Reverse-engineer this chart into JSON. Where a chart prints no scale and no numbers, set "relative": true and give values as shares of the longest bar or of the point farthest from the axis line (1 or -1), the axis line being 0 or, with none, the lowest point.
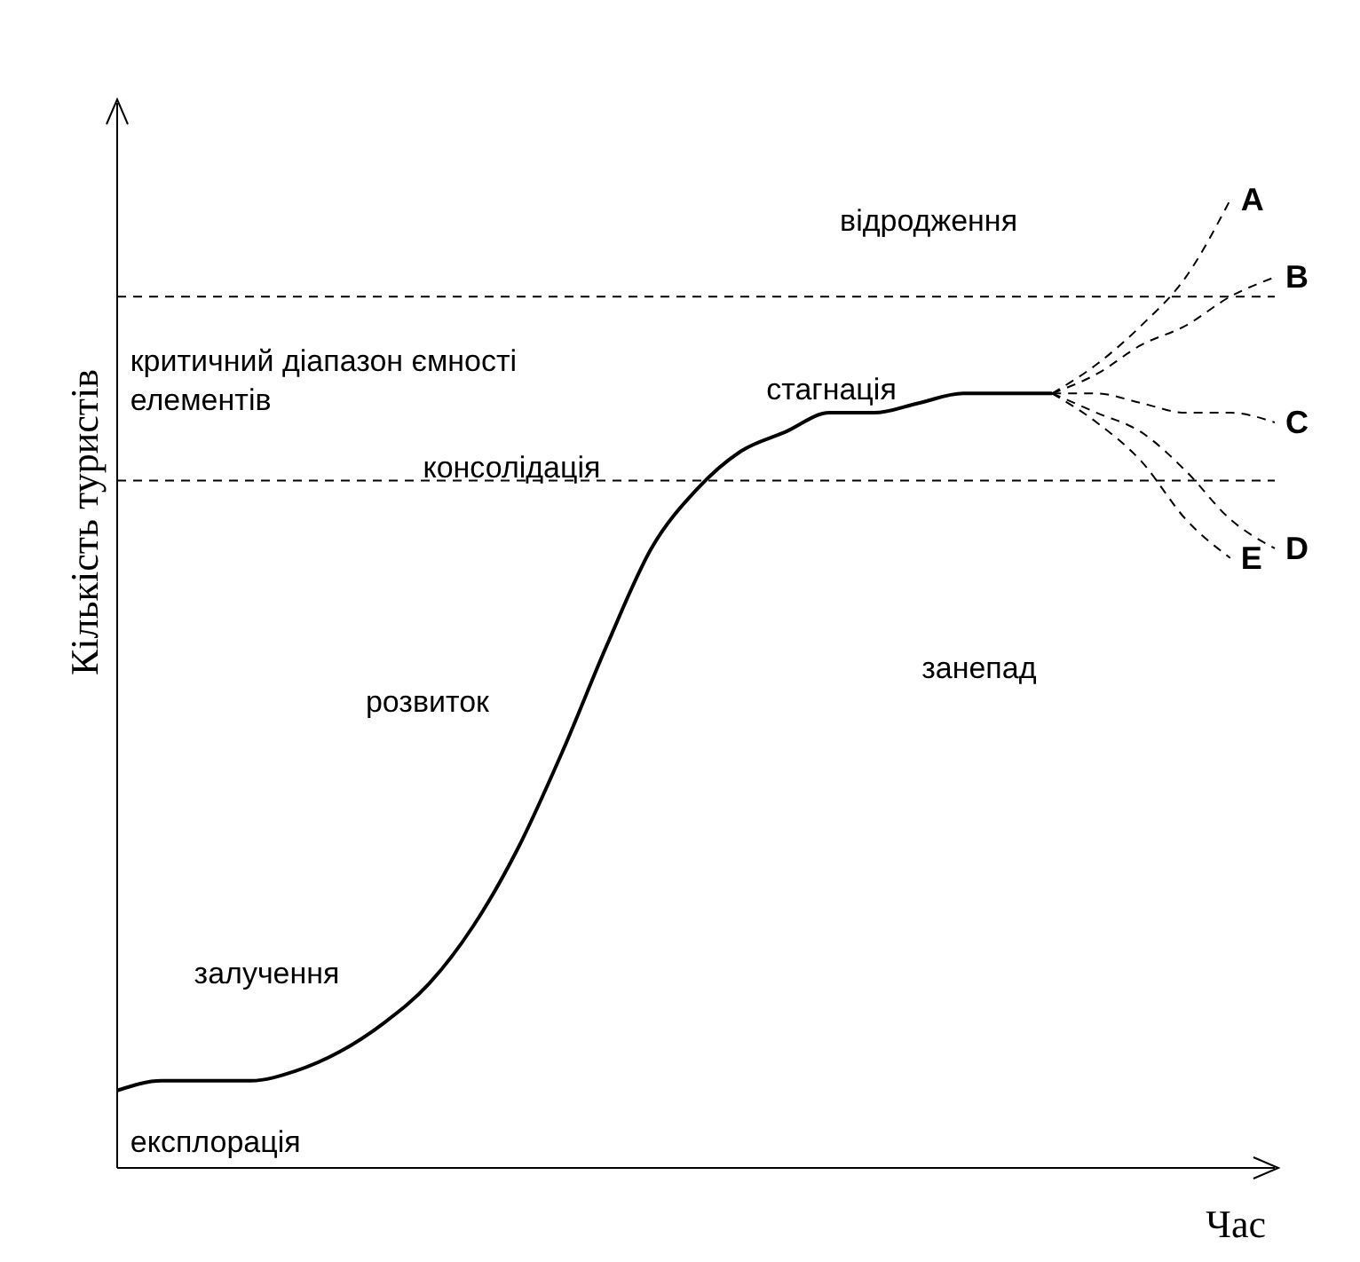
{
  "chart_data": {
    "type": "line",
    "relative": true,
    "xlabel": "Час",
    "ylabel": "Кількість туристів",
    "categories": [
      null,
      null,
      null,
      null,
      null,
      null,
      null,
      null,
      null,
      null,
      null,
      null,
      null,
      null,
      null,
      null,
      null,
      null,
      null,
      null,
      null,
      null,
      null,
      null,
      null,
      null,
      null
    ],
    "series": [
      {
        "color": "#000000",
        "line_style": "solid",
        "values": [
          0.08,
          0.09,
          0.09,
          0.09,
          0.1,
          0.12,
          0.15,
          0.19,
          0.25,
          0.33,
          0.43,
          0.54,
          0.64,
          0.7,
          0.74,
          0.76,
          0.78,
          0.78,
          0.79,
          0.8,
          0.8,
          0.8,
          null,
          null,
          null,
          null,
          null
        ]
      },
      {
        "name": "A",
        "color": "#000000",
        "line_style": "dashed",
        "values": [
          null,
          null,
          null,
          null,
          null,
          null,
          null,
          null,
          null,
          null,
          null,
          null,
          null,
          null,
          null,
          null,
          null,
          null,
          null,
          null,
          null,
          0.8,
          0.83,
          0.87,
          0.92,
          1.0,
          null
        ]
      },
      {
        "name": "B",
        "color": "#000000",
        "line_style": "dashed",
        "values": [
          null,
          null,
          null,
          null,
          null,
          null,
          null,
          null,
          null,
          null,
          null,
          null,
          null,
          null,
          null,
          null,
          null,
          null,
          null,
          null,
          null,
          0.8,
          0.82,
          0.85,
          0.87,
          0.9,
          0.92
        ]
      },
      {
        "name": "C",
        "color": "#000000",
        "line_style": "dashed",
        "values": [
          null,
          null,
          null,
          null,
          null,
          null,
          null,
          null,
          null,
          null,
          null,
          null,
          null,
          null,
          null,
          null,
          null,
          null,
          null,
          null,
          null,
          0.8,
          0.8,
          0.79,
          0.78,
          0.78,
          0.77
        ]
      },
      {
        "name": "D",
        "color": "#000000",
        "line_style": "dashed",
        "values": [
          null,
          null,
          null,
          null,
          null,
          null,
          null,
          null,
          null,
          null,
          null,
          null,
          null,
          null,
          null,
          null,
          null,
          null,
          null,
          null,
          null,
          0.8,
          0.78,
          0.76,
          0.72,
          0.67,
          0.64
        ]
      },
      {
        "name": "E",
        "color": "#000000",
        "line_style": "dashed",
        "values": [
          null,
          null,
          null,
          null,
          null,
          null,
          null,
          null,
          null,
          null,
          null,
          null,
          null,
          null,
          null,
          null,
          null,
          null,
          null,
          null,
          null,
          0.8,
          0.77,
          0.73,
          0.67,
          0.63,
          null
        ]
      }
    ],
    "ref_lines": [
      {
        "axis": "y",
        "value": 0.9,
        "color": "#000000",
        "line_style": "dashed"
      },
      {
        "axis": "y",
        "value": 0.71,
        "color": "#000000",
        "line_style": "dashed"
      }
    ],
    "annotations": [
      "відродження",
      "критичний діапазон ємності елементів",
      "стагнація",
      "консолідація",
      "розвиток",
      "залучення",
      "експлорація",
      "занепад"
    ],
    "marker": "none"
  }
}
